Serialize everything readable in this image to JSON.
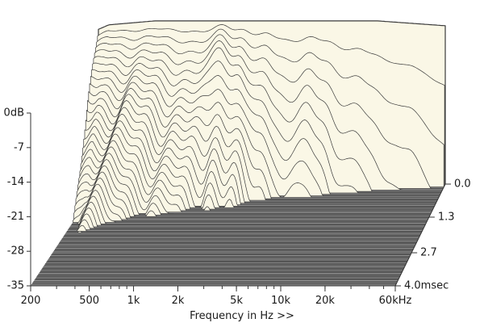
{
  "chart_data": {
    "type": "waterfall",
    "xlabel": "Frequency in Hz >>",
    "x_scale": "log",
    "x_range_hz": [
      200,
      60000
    ],
    "x_ticks": [
      {
        "hz": 200,
        "label": "200"
      },
      {
        "hz": 500,
        "label": "500"
      },
      {
        "hz": 1000,
        "label": "1k"
      },
      {
        "hz": 2000,
        "label": "2k"
      },
      {
        "hz": 5000,
        "label": "5k"
      },
      {
        "hz": 10000,
        "label": "10k"
      },
      {
        "hz": 20000,
        "label": "20k"
      },
      {
        "hz": 60000,
        "label": "60kHz"
      }
    ],
    "y_range_db": [
      -35,
      0
    ],
    "y_ticks": [
      {
        "db": 0,
        "label": "0dB"
      },
      {
        "db": -7,
        "label": "-7"
      },
      {
        "db": -14,
        "label": "-14"
      },
      {
        "db": -21,
        "label": "-21"
      },
      {
        "db": -28,
        "label": "-28"
      },
      {
        "db": -35,
        "label": "-35"
      }
    ],
    "time_range_ms": [
      0,
      4.0
    ],
    "time_ticks": [
      {
        "ms": 0.0,
        "label": "0.0"
      },
      {
        "ms": 1.3,
        "label": "1.3"
      },
      {
        "ms": 2.7,
        "label": "2.7"
      },
      {
        "ms": 4.0,
        "label": "4.0msec"
      }
    ],
    "slices": 70,
    "initial_response_db": [
      {
        "hz": 200,
        "db": -2
      },
      {
        "hz": 500,
        "db": -1
      },
      {
        "hz": 1000,
        "db": -1
      },
      {
        "hz": 2000,
        "db": -1
      },
      {
        "hz": 5000,
        "db": -1
      },
      {
        "hz": 10000,
        "db": -1
      },
      {
        "hz": 20000,
        "db": -1
      },
      {
        "hz": 60000,
        "db": -2
      }
    ],
    "colors": {
      "surface": "#faf7e6",
      "line": "#3a3a3a",
      "floor_a": "#6e6e6e",
      "floor_b": "#959595",
      "axis": "#333333"
    }
  }
}
